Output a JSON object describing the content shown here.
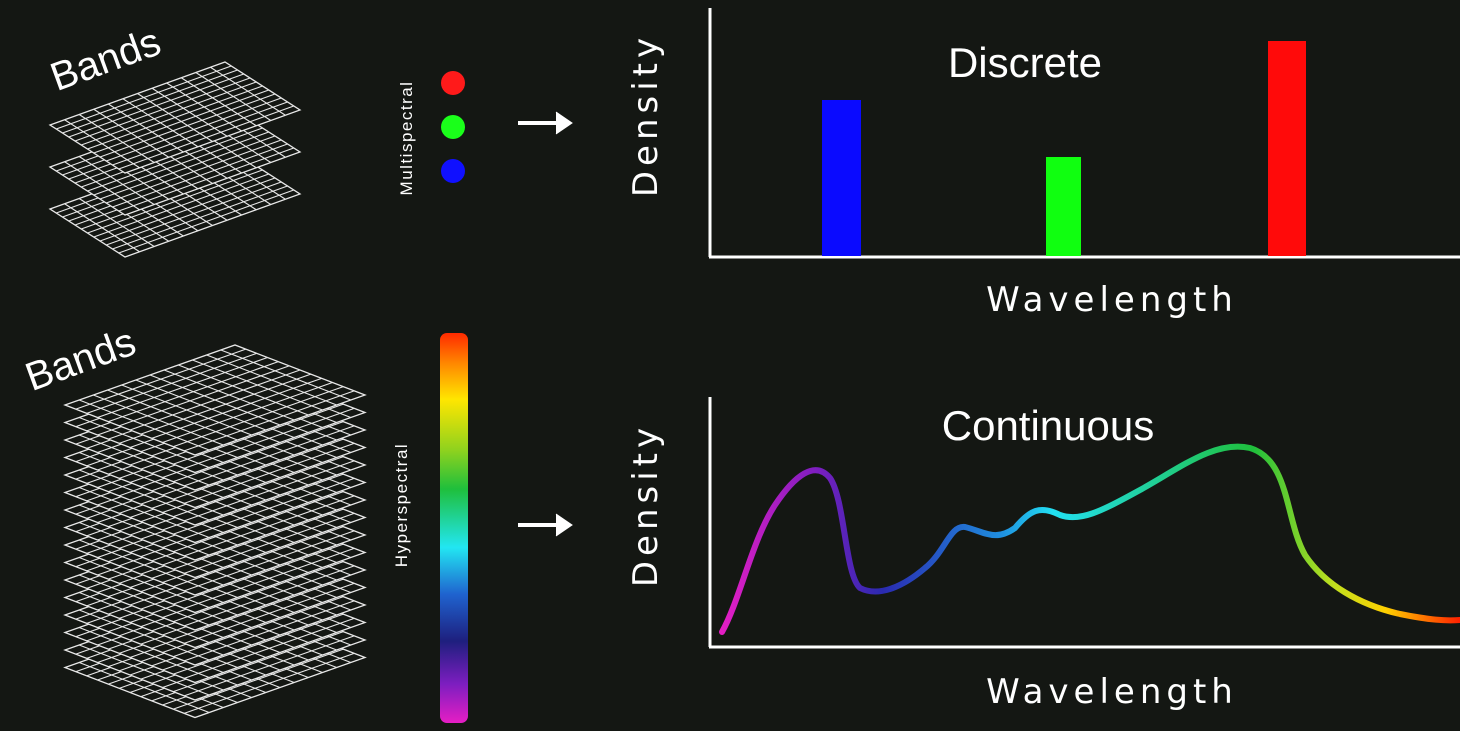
{
  "multispectral": {
    "bands_label": "Bands",
    "sensor_label": "Multispectral",
    "chart": {
      "title": "Discrete",
      "y_label": "Density",
      "x_label": "Wavelength"
    }
  },
  "hyperspectral": {
    "bands_label": "Bands",
    "sensor_label": "Hyperspectral",
    "chart": {
      "title": "Continuous",
      "y_label": "Density",
      "x_label": "Wavelength"
    }
  }
}
